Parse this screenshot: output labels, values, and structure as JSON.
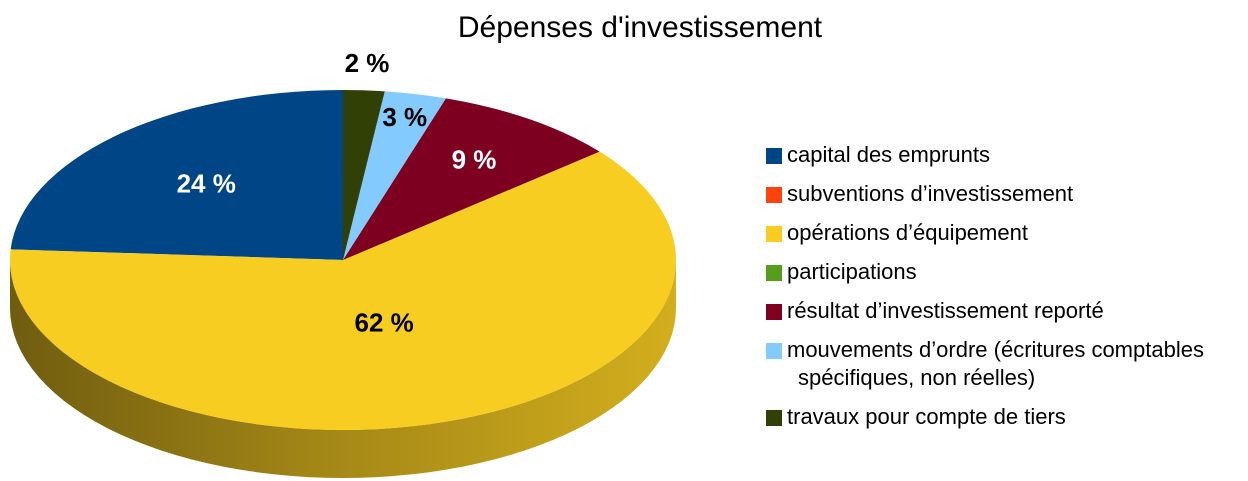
{
  "chart_data": {
    "type": "pie3d",
    "title": "Dépenses d'investissement",
    "categories": [
      "capital des emprunts",
      "subventions d’investissement",
      "opérations d’équipement",
      "participations",
      "résultat d’investissement reporté",
      "mouvements d’ordre (écritures comptables spécifiques, non réelles)",
      "travaux pour compte de tiers"
    ],
    "values": [
      24,
      0,
      62,
      0,
      9,
      3,
      2
    ],
    "value_labels": [
      "24 %",
      null,
      "62 %",
      null,
      "9 %",
      "3 %",
      "2 %"
    ],
    "colors": [
      "#004586",
      "#ff420e",
      "#f8cd22",
      "#579d1c",
      "#7e0021",
      "#83caff",
      "#314004"
    ],
    "legend": "right"
  }
}
